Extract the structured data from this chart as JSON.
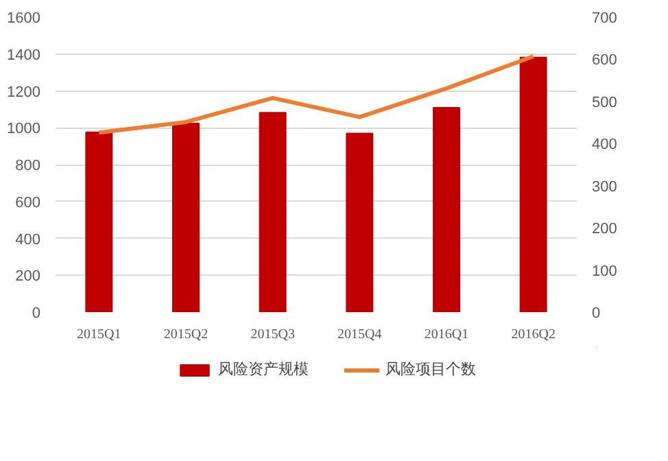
{
  "chart_data": {
    "type": "bar",
    "categories": [
      "2015Q1",
      "2015Q2",
      "2015Q3",
      "2015Q4",
      "2016Q1",
      "2016Q2"
    ],
    "series": [
      {
        "name": "风险资产规模",
        "type": "bar",
        "color": "#c00000",
        "values": [
          976,
          1023,
          1082,
          969,
          1109,
          1381
        ]
      },
      {
        "name": "风险项目个数",
        "type": "line",
        "axis": "y2",
        "color": "#ed7d31",
        "values": [
          426,
          451,
          508,
          463,
          531,
          607
        ]
      }
    ],
    "ylim": [
      0,
      1600
    ],
    "yticks": [
      0,
      200,
      400,
      600,
      800,
      1000,
      1200,
      1400,
      1600
    ],
    "y2lim": [
      0,
      700
    ],
    "y2ticks": [
      0,
      100,
      200,
      300,
      400,
      500,
      600,
      700
    ],
    "grid": "y",
    "legend": "bottom"
  }
}
